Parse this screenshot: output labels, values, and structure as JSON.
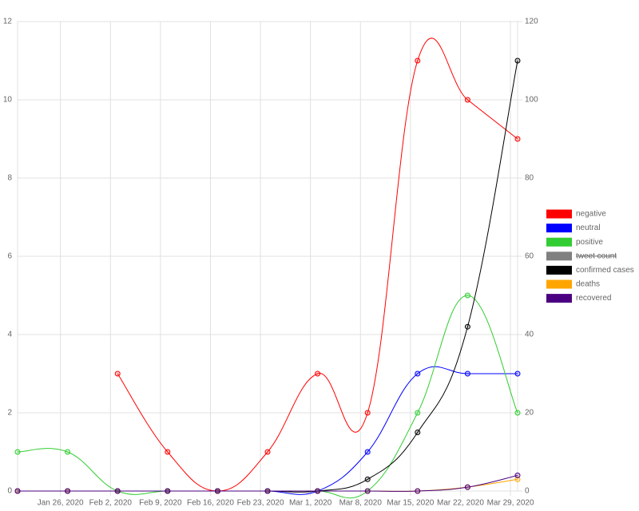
{
  "chart_data": {
    "type": "line",
    "x": [
      "2020-01-20",
      "2020-01-27",
      "2020-02-03",
      "2020-02-10",
      "2020-02-17",
      "2020-02-24",
      "2020-03-02",
      "2020-03-09",
      "2020-03-16",
      "2020-03-23",
      "2020-03-30"
    ],
    "xlim": [
      "2020-01-20",
      "2020-03-30"
    ],
    "xticks": [
      {
        "value": "2020-01-26",
        "label": "Jan 26, 2020"
      },
      {
        "value": "2020-02-02",
        "label": "Feb 2, 2020"
      },
      {
        "value": "2020-02-09",
        "label": "Feb 9, 2020"
      },
      {
        "value": "2020-02-16",
        "label": "Feb 16, 2020"
      },
      {
        "value": "2020-02-23",
        "label": "Feb 23, 2020"
      },
      {
        "value": "2020-03-01",
        "label": "Mar 1, 2020"
      },
      {
        "value": "2020-03-08",
        "label": "Mar 8, 2020"
      },
      {
        "value": "2020-03-15",
        "label": "Mar 15, 2020"
      },
      {
        "value": "2020-03-22",
        "label": "Mar 22, 2020"
      },
      {
        "value": "2020-03-29",
        "label": "Mar 29, 2020"
      }
    ],
    "ylim": [
      0,
      12
    ],
    "yticks": [
      0,
      2,
      4,
      6,
      8,
      10,
      12
    ],
    "y2lim": [
      0,
      120
    ],
    "y2ticks": [
      0,
      20,
      40,
      60,
      80,
      100,
      120
    ],
    "grid": true,
    "legend": "right",
    "series": [
      {
        "name": "negative",
        "color": "#ff0000",
        "values": [
          null,
          null,
          3,
          1,
          0,
          1,
          3,
          2,
          11,
          10,
          9
        ]
      },
      {
        "name": "neutral",
        "color": "#0000ff",
        "values": [
          null,
          null,
          0,
          0,
          0,
          0,
          0,
          1,
          3,
          3,
          3
        ]
      },
      {
        "name": "positive",
        "color": "#32cd32",
        "values": [
          1,
          1,
          0,
          0,
          0,
          0,
          0,
          0,
          2,
          5,
          2
        ]
      },
      {
        "name": "tweet count",
        "color": "#808080",
        "hidden": true
      },
      {
        "name": "confirmed cases",
        "color": "#000000",
        "axis": "y2",
        "values": [
          0,
          0,
          0,
          0,
          0,
          0,
          0,
          3,
          15,
          42,
          110
        ]
      },
      {
        "name": "deaths",
        "color": "#ffa500",
        "axis": "y2",
        "values": [
          0,
          0,
          0,
          0,
          0,
          0,
          0,
          0,
          0,
          1,
          3
        ]
      },
      {
        "name": "recovered",
        "color": "#4b0082",
        "axis": "y2",
        "values": [
          0,
          0,
          0,
          0,
          0,
          0,
          0,
          0,
          0,
          1,
          4
        ]
      }
    ]
  }
}
